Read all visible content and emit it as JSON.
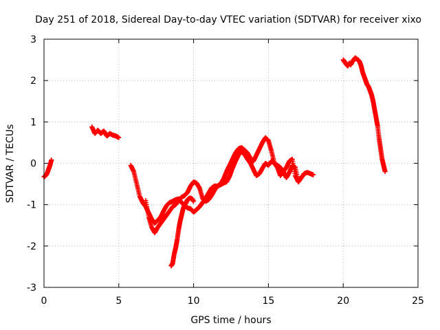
{
  "chart_data": {
    "type": "scatter",
    "title": "Day 251 of 2018, Sidereal Day-to-day VTEC variation (SDTVAR) for receiver xixo",
    "xlabel": "GPS time / hours",
    "ylabel": "SDTVAR / TECUs",
    "xlim": [
      0,
      25
    ],
    "ylim": [
      -3,
      3
    ],
    "xticks": [
      0,
      5,
      10,
      15,
      20,
      25
    ],
    "yticks": [
      -3,
      -2,
      -1,
      0,
      1,
      2,
      3
    ],
    "xtick_labels": [
      "0",
      "5",
      "10",
      "15",
      "20",
      "25"
    ],
    "ytick_labels": [
      "-3",
      "-2",
      "-1",
      "0",
      "1",
      "2",
      "3"
    ],
    "grid": true,
    "marker": "+",
    "color": "#ff0000",
    "series": [
      {
        "name": "seg1",
        "x": [
          0.0,
          0.1,
          0.2,
          0.3,
          0.4,
          0.5
        ],
        "y": [
          -0.33,
          -0.3,
          -0.25,
          -0.15,
          -0.05,
          0.08
        ]
      },
      {
        "name": "seg2",
        "x": [
          3.2,
          3.4,
          3.6,
          3.8,
          4.0,
          4.2,
          4.4,
          4.6,
          4.8,
          5.0
        ],
        "y": [
          0.88,
          0.72,
          0.8,
          0.72,
          0.78,
          0.66,
          0.72,
          0.68,
          0.66,
          0.62
        ]
      },
      {
        "name": "seg3",
        "x": [
          5.8,
          6.0,
          6.2,
          6.4,
          6.6,
          6.8,
          7.0,
          7.2,
          7.4,
          7.6,
          7.8,
          8.0,
          8.2,
          8.4,
          8.6,
          8.8,
          9.0,
          9.2,
          9.4,
          9.6,
          9.8,
          10.0,
          10.2,
          10.4,
          10.6,
          10.8,
          11.0,
          11.2,
          11.4,
          11.6,
          11.8,
          12.0,
          12.2,
          12.4,
          12.6,
          12.8,
          13.0,
          13.2,
          13.4,
          13.6,
          13.8,
          14.0,
          14.2,
          14.4,
          14.6,
          14.8,
          15.0,
          15.2,
          15.4,
          15.6,
          15.8,
          16.0,
          16.2,
          16.4,
          16.6,
          16.8,
          17.0
        ],
        "y": [
          -0.05,
          -0.2,
          -0.5,
          -0.8,
          -0.95,
          -1.05,
          -1.2,
          -1.35,
          -1.45,
          -1.38,
          -1.3,
          -1.15,
          -1.02,
          -0.95,
          -0.92,
          -0.88,
          -0.86,
          -0.95,
          -1.02,
          -1.08,
          -1.1,
          -1.18,
          -1.12,
          -1.05,
          -0.95,
          -0.85,
          -0.72,
          -0.6,
          -0.55,
          -0.55,
          -0.5,
          -0.38,
          -0.2,
          -0.05,
          0.1,
          0.25,
          0.35,
          0.38,
          0.32,
          0.25,
          0.12,
          0.05,
          0.2,
          0.35,
          0.5,
          0.62,
          0.55,
          0.3,
          0.0,
          -0.05,
          -0.1,
          -0.2,
          -0.35,
          -0.22,
          -0.05,
          -0.1,
          -0.45
        ]
      },
      {
        "name": "seg4",
        "x": [
          6.8,
          7.0,
          7.2,
          7.4,
          7.6,
          7.8,
          8.0,
          8.2,
          8.4,
          8.6,
          8.8,
          9.0,
          9.2,
          9.4,
          9.6,
          9.8,
          10.0,
          10.2,
          10.4,
          10.6,
          10.8,
          11.0,
          11.2,
          11.4,
          11.6,
          11.8,
          12.0,
          12.2,
          12.4,
          12.6,
          12.8,
          13.0,
          13.2,
          13.4,
          13.6,
          13.8,
          14.0,
          14.2,
          14.4,
          14.6,
          14.8,
          15.0,
          15.2,
          15.4,
          15.6,
          15.8,
          16.0,
          16.2,
          16.4,
          16.6,
          16.8,
          17.0,
          17.2,
          17.4,
          17.6,
          17.8,
          18.0
        ],
        "y": [
          -0.9,
          -1.3,
          -1.55,
          -1.68,
          -1.55,
          -1.45,
          -1.35,
          -1.25,
          -1.15,
          -1.05,
          -1.0,
          -0.9,
          -0.82,
          -0.78,
          -0.7,
          -0.55,
          -0.45,
          -0.48,
          -0.6,
          -0.85,
          -0.92,
          -0.88,
          -0.78,
          -0.65,
          -0.55,
          -0.52,
          -0.48,
          -0.45,
          -0.32,
          -0.12,
          0.05,
          0.2,
          0.28,
          0.22,
          0.1,
          0.0,
          -0.15,
          -0.3,
          -0.25,
          -0.12,
          0.0,
          -0.05,
          0.05,
          0.0,
          -0.1,
          -0.3,
          -0.2,
          -0.1,
          0.05,
          0.1,
          -0.3,
          -0.45,
          -0.35,
          -0.25,
          -0.22,
          -0.25,
          -0.28
        ]
      },
      {
        "name": "seg5",
        "x": [
          8.5,
          8.6,
          8.7,
          8.8,
          8.9,
          9.0,
          9.1,
          9.2,
          9.3,
          9.4,
          9.5,
          9.6,
          9.7,
          9.8,
          9.9,
          10.0
        ],
        "y": [
          -2.48,
          -2.42,
          -2.2,
          -2.05,
          -1.85,
          -1.6,
          -1.4,
          -1.25,
          -1.1,
          -1.0,
          -0.95,
          -0.88,
          -0.85,
          -0.84,
          -0.86,
          -0.92
        ]
      },
      {
        "name": "seg6",
        "x": [
          20.0,
          20.1,
          20.2,
          20.3,
          20.4,
          20.5,
          20.6,
          20.7,
          20.8,
          20.9,
          21.0,
          21.1,
          21.2,
          21.3,
          21.4,
          21.5,
          21.6,
          21.7,
          21.8,
          21.9,
          22.0,
          22.1,
          22.2,
          22.3,
          22.4,
          22.5,
          22.6,
          22.7,
          22.8
        ],
        "y": [
          2.5,
          2.45,
          2.4,
          2.35,
          2.42,
          2.38,
          2.45,
          2.5,
          2.55,
          2.52,
          2.5,
          2.45,
          2.35,
          2.2,
          2.1,
          2.0,
          1.9,
          1.85,
          1.75,
          1.65,
          1.5,
          1.3,
          1.1,
          0.9,
          0.6,
          0.35,
          0.1,
          -0.05,
          -0.2
        ]
      }
    ]
  }
}
